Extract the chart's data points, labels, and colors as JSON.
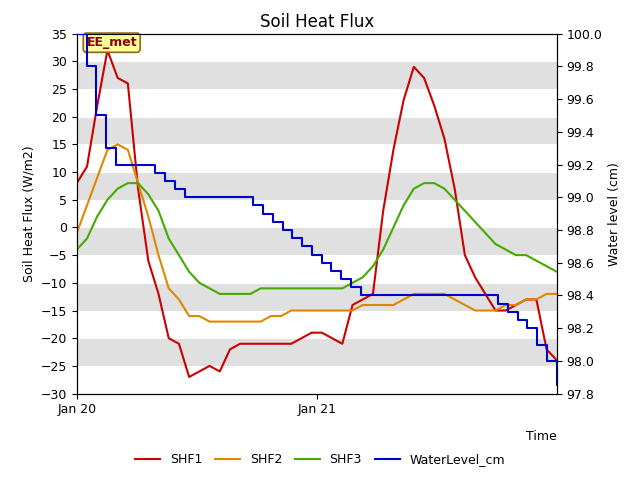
{
  "title": "Soil Heat Flux",
  "ylabel_left": "Soil Heat Flux (W/m2)",
  "ylabel_right": "Water level (cm)",
  "xlabel": "Time",
  "ylim_left": [
    -30,
    35
  ],
  "ylim_right": [
    97.8,
    100.0
  ],
  "annotation_text": "EE_met",
  "background_color": "#e8e8e8",
  "band_color_light": "#f0f0f0",
  "band_color_dark": "#d8d8d8",
  "x_ticks_labels": [
    "Jan 20",
    "Jan 21"
  ],
  "legend_labels": [
    "SHF1",
    "SHF2",
    "SHF3",
    "WaterLevel_cm"
  ],
  "line_colors": {
    "SHF1": "#cc0000",
    "SHF2": "#dd8800",
    "SHF3": "#44aa00",
    "WaterLevel_cm": "#0000cc"
  },
  "SHF1": [
    8,
    11,
    22,
    32,
    27,
    26,
    7,
    -6,
    -12,
    -20,
    -21,
    -27,
    -26,
    -25,
    -26,
    -22,
    -21,
    -21,
    -21,
    -21,
    -21,
    -21,
    -20,
    -19,
    -19,
    -20,
    -21,
    -14,
    -13,
    -12,
    3,
    14,
    23,
    29,
    27,
    22,
    16,
    7,
    -5,
    -9,
    -12,
    -15,
    -15,
    -14,
    -13,
    -13,
    -22,
    -24
  ],
  "SHF2": [
    -1,
    4,
    9,
    14,
    15,
    14,
    8,
    2,
    -5,
    -11,
    -13,
    -16,
    -16,
    -17,
    -17,
    -17,
    -17,
    -17,
    -17,
    -16,
    -16,
    -15,
    -15,
    -15,
    -15,
    -15,
    -15,
    -15,
    -14,
    -14,
    -14,
    -14,
    -13,
    -12,
    -12,
    -12,
    -12,
    -13,
    -14,
    -15,
    -15,
    -15,
    -14,
    -14,
    -13,
    -13,
    -12,
    -12
  ],
  "SHF3": [
    -4,
    -2,
    2,
    5,
    7,
    8,
    8,
    6,
    3,
    -2,
    -5,
    -8,
    -10,
    -11,
    -12,
    -12,
    -12,
    -12,
    -11,
    -11,
    -11,
    -11,
    -11,
    -11,
    -11,
    -11,
    -11,
    -10,
    -9,
    -7,
    -4,
    0,
    4,
    7,
    8,
    8,
    7,
    5,
    3,
    1,
    -1,
    -3,
    -4,
    -5,
    -5,
    -6,
    -7,
    -8
  ],
  "WaterLevel_cm_raw": [
    100.0,
    99.8,
    99.5,
    99.3,
    99.2,
    99.2,
    99.2,
    99.2,
    99.15,
    99.1,
    99.05,
    99.0,
    99.0,
    99.0,
    99.0,
    99.0,
    99.0,
    99.0,
    98.95,
    98.9,
    98.85,
    98.8,
    98.75,
    98.7,
    98.65,
    98.6,
    98.55,
    98.5,
    98.45,
    98.4,
    98.4,
    98.4,
    98.4,
    98.4,
    98.4,
    98.4,
    98.4,
    98.4,
    98.4,
    98.4,
    98.4,
    98.4,
    98.4,
    98.35,
    98.3,
    98.25,
    98.2,
    98.1,
    98.0,
    97.85
  ],
  "n_points": 48,
  "grid_color": "#ffffff",
  "title_fontsize": 12,
  "axis_label_fontsize": 9,
  "tick_fontsize": 9,
  "yticks_left": [
    -30,
    -25,
    -20,
    -15,
    -10,
    -5,
    0,
    5,
    10,
    15,
    20,
    25,
    30,
    35
  ],
  "yticks_right": [
    97.8,
    98.0,
    98.2,
    98.4,
    98.6,
    98.8,
    99.0,
    99.2,
    99.4,
    99.6,
    99.8,
    100.0
  ]
}
